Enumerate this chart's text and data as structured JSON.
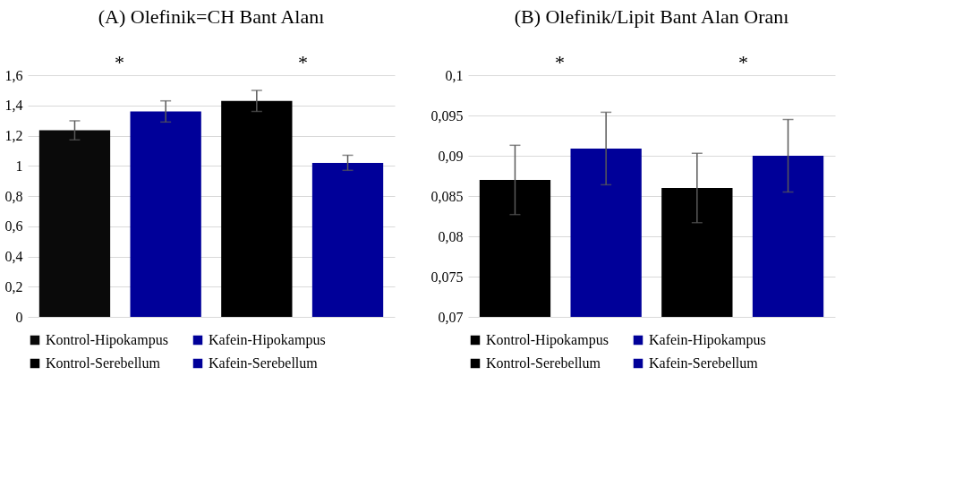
{
  "chart_data": [
    {
      "type": "bar",
      "title": "(A) Olefinik=CH Bant Alanı",
      "categories": [
        null
      ],
      "series": [
        {
          "name": "Kontrol-Hipokampus",
          "color": "#0a0a0a",
          "values": [
            1.235
          ],
          "errors": [
            0.063
          ]
        },
        {
          "name": "Kafein-Hipokampus",
          "color": "#000099",
          "values": [
            1.36
          ],
          "errors": [
            0.07
          ]
        },
        {
          "name": "Kontrol-Serebellum",
          "color": "#000000",
          "values": [
            1.43
          ],
          "errors": [
            0.07
          ]
        },
        {
          "name": "Kafein-Serebellum",
          "color": "#000099",
          "values": [
            1.02
          ],
          "errors": [
            0.05
          ]
        }
      ],
      "ylim": [
        0,
        1.6
      ],
      "yticks": [
        0,
        {
          "value": 0.2,
          "label": "0,2"
        },
        {
          "value": 0.4,
          "label": "0,4"
        },
        {
          "value": 0.6,
          "label": "0,6"
        },
        {
          "value": 0.8,
          "label": "0,8"
        },
        1,
        {
          "value": 1.2,
          "label": "1,2"
        },
        {
          "value": 1.4,
          "label": "1,4"
        },
        {
          "value": 1.6,
          "label": "1,6"
        }
      ],
      "annotations": [
        "*",
        "*"
      ],
      "grid": "y",
      "legend": "bottom",
      "tick_labels": "y"
    },
    {
      "type": "bar",
      "title": "(B) Olefinik/Lipit Bant Alan Oranı",
      "categories": [
        null
      ],
      "series": [
        {
          "name": "Kontrol-Hipokampus",
          "color": "#000000",
          "values": [
            0.087
          ],
          "errors": [
            0.0043
          ]
        },
        {
          "name": "Kafein-Hipokampus",
          "color": "#000099",
          "values": [
            0.0909
          ],
          "errors": [
            0.0045
          ]
        },
        {
          "name": "Kontrol-Serebellum",
          "color": "#000000",
          "values": [
            0.086
          ],
          "errors": [
            0.0043
          ]
        },
        {
          "name": "Kafein-Serebellum",
          "color": "#000099",
          "values": [
            0.09
          ],
          "errors": [
            0.0045
          ]
        }
      ],
      "ylim": [
        0.07,
        0.1
      ],
      "yticks": [
        {
          "value": 0.07,
          "label": "0,07"
        },
        {
          "value": 0.075,
          "label": "0,075"
        },
        {
          "value": 0.08,
          "label": "0,08"
        },
        {
          "value": 0.085,
          "label": "0,085"
        },
        {
          "value": 0.09,
          "label": "0,09"
        },
        {
          "value": 0.095,
          "label": "0,095"
        },
        {
          "value": 0.1,
          "label": "0,1"
        }
      ],
      "annotations": [
        "*",
        "*"
      ],
      "grid": "y",
      "legend": "bottom",
      "tick_labels": "y"
    }
  ]
}
